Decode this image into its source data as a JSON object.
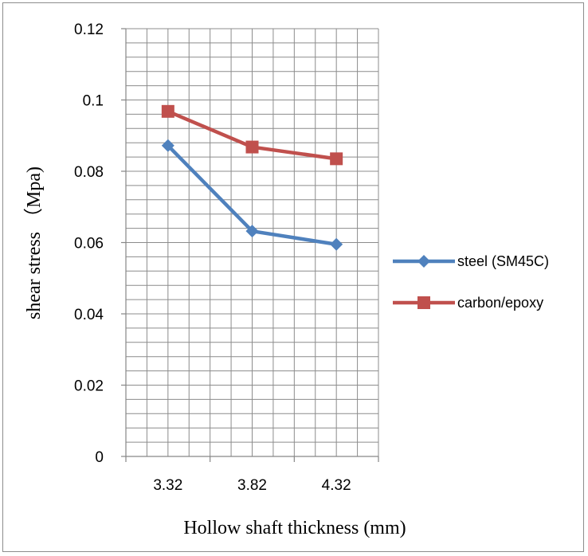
{
  "chart_data": {
    "type": "line",
    "categories": [
      "3.32",
      "3.82",
      "4.32"
    ],
    "series": [
      {
        "name": "steel (SM45C)",
        "values": [
          0.0872,
          0.0632,
          0.0595
        ],
        "color": "#4F81BD",
        "marker": "diamond"
      },
      {
        "name": "carbon/epoxy",
        "values": [
          0.0968,
          0.0868,
          0.0835
        ],
        "color": "#C0504D",
        "marker": "square"
      }
    ],
    "title": "",
    "xlabel": "Hollow shaft thickness (mm)",
    "ylabel": "shear stress （Mpa)",
    "ylim": [
      0,
      0.12
    ],
    "yticks": [
      "0",
      "0.02",
      "0.04",
      "0.06",
      "0.08",
      "0.1",
      "0.12"
    ],
    "ytick_values": [
      0,
      0.02,
      0.04,
      0.06,
      0.08,
      0.1,
      0.12
    ],
    "minor_grid_step": 0.004,
    "grid": true,
    "legend_position": "right"
  }
}
